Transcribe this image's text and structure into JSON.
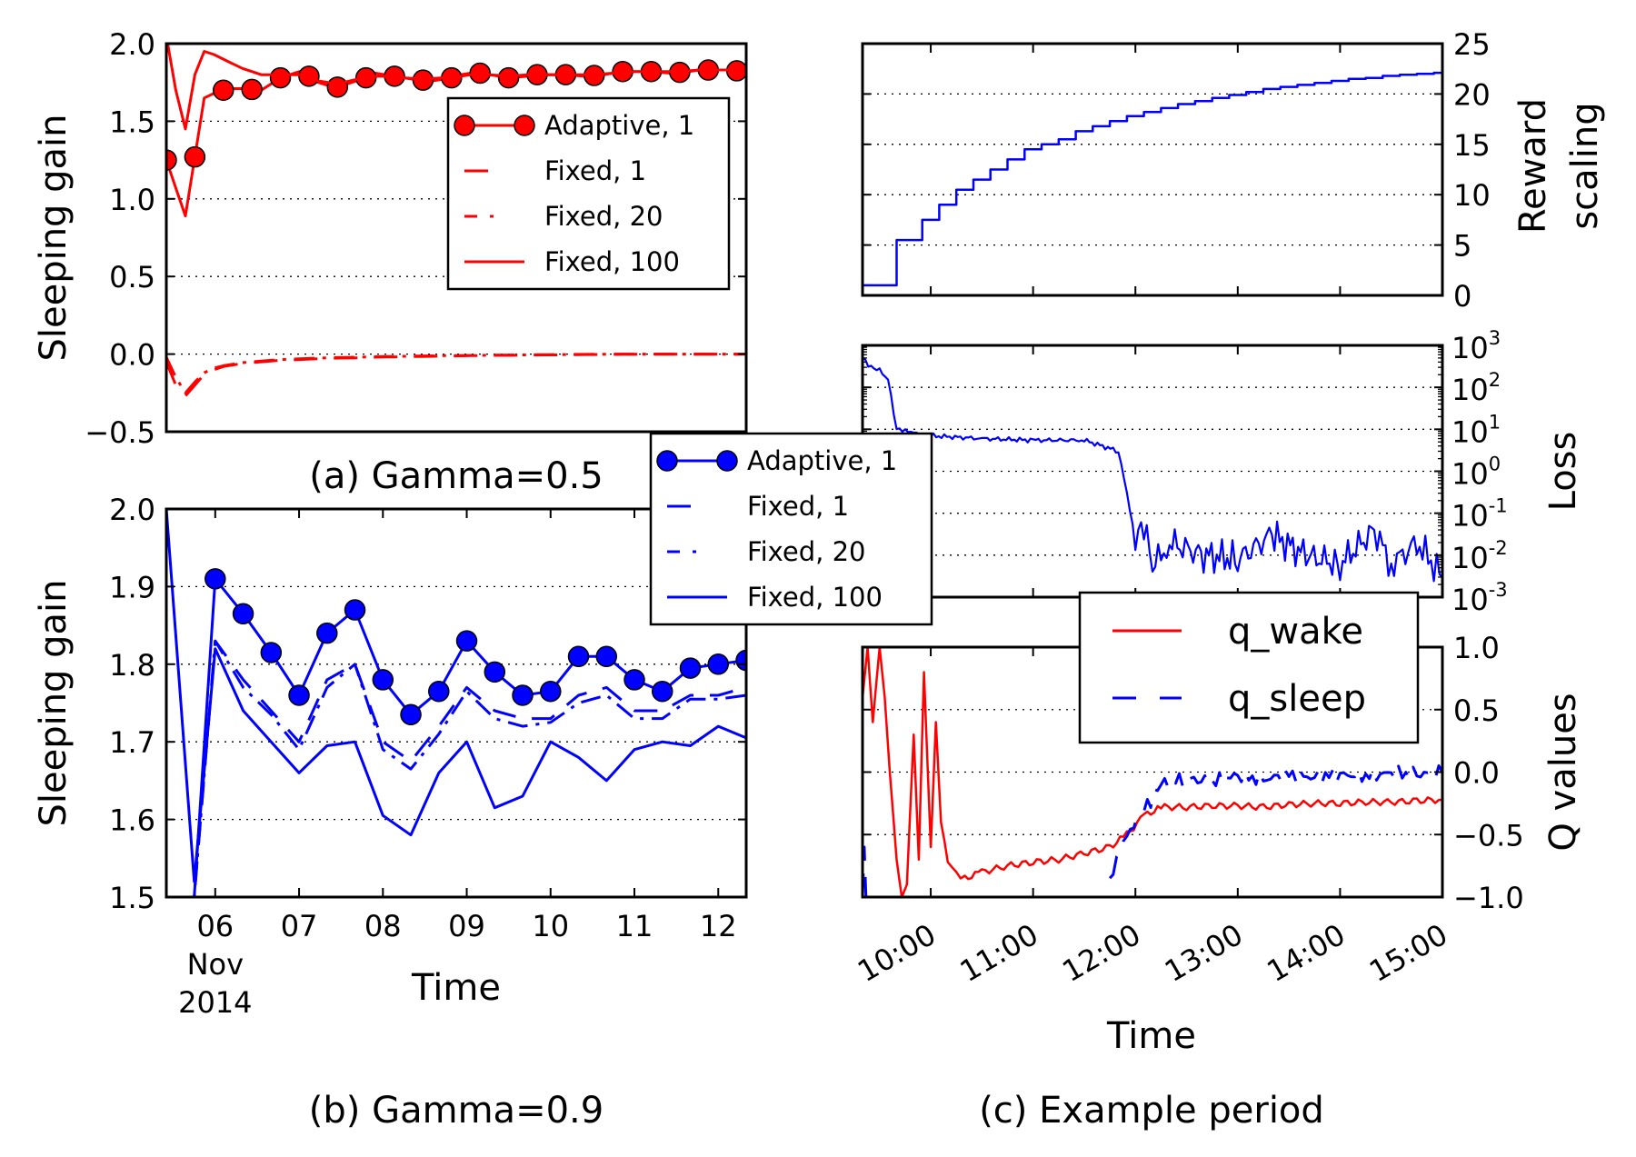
{
  "chart_data": [
    {
      "id": "a",
      "type": "line",
      "caption": "(a) Gamma=0.5",
      "ylabel": "Sleeping gain",
      "ylim": [
        -0.5,
        2.0
      ],
      "yticks": [
        "−0.5",
        "0.0",
        "0.5",
        "1.0",
        "1.5",
        "2.0"
      ],
      "grid": "y dotted",
      "legend_position": "upper-right",
      "colors": {
        "series": "#ff0000"
      },
      "x": [
        0,
        0.33,
        0.67,
        1.0,
        1.33,
        1.67,
        2.0,
        2.33,
        2.67,
        3.0,
        3.33,
        3.67,
        4.0,
        4.33,
        4.67,
        5.0,
        5.33,
        5.67,
        6.0,
        6.33,
        6.67,
        7.0,
        7.33,
        7.67,
        8.0,
        8.33,
        8.67,
        9.0,
        9.33,
        9.67,
        10.0,
        10.33,
        10.67,
        11.0,
        11.33,
        11.67,
        12.0,
        12.33,
        12.67,
        13.0,
        13.33,
        13.67,
        14.0,
        14.33,
        14.67,
        15.0,
        15.33,
        15.67,
        16.0,
        16.33,
        16.67,
        17.0,
        17.33,
        17.67,
        18.0,
        18.33,
        18.67,
        19.0,
        19.33,
        19.67,
        20.0,
        20.33
      ],
      "series": [
        {
          "name": "Adaptive, 1",
          "style": "solid-marker",
          "values": [
            1.25,
            1.07,
            0.89,
            1.27,
            1.65,
            1.68,
            1.7,
            1.71,
            1.71,
            1.705,
            1.7,
            1.74,
            1.78,
            1.8,
            1.82,
            1.79,
            1.75,
            1.73,
            1.72,
            1.74,
            1.76,
            1.78,
            1.81,
            1.8,
            1.79,
            1.78,
            1.77,
            1.765,
            1.76,
            1.77,
            1.78,
            1.8,
            1.81,
            1.81,
            1.8,
            1.79,
            1.78,
            1.785,
            1.79,
            1.8,
            1.8,
            1.8,
            1.8,
            1.795,
            1.79,
            1.795,
            1.8,
            1.81,
            1.82,
            1.82,
            1.82,
            1.82,
            1.815,
            1.81,
            1.815,
            1.82,
            1.83,
            1.83,
            1.83,
            1.83,
            1.825,
            1.82
          ]
        },
        {
          "name": "Fixed, 1",
          "style": "dashed",
          "values": [
            -0.05,
            -0.2,
            -0.27,
            -0.2,
            -0.13,
            -0.1,
            -0.08,
            -0.07,
            -0.06,
            -0.055,
            -0.05,
            -0.045,
            -0.04,
            -0.038,
            -0.035,
            -0.032,
            -0.03,
            -0.028,
            -0.026,
            -0.025,
            -0.024,
            -0.022,
            -0.02,
            -0.019,
            -0.018,
            -0.017,
            -0.016,
            -0.015,
            -0.014,
            -0.013,
            -0.012,
            -0.011,
            -0.01,
            -0.01,
            -0.009,
            -0.008,
            -0.008,
            -0.007,
            -0.006,
            -0.006,
            -0.005,
            -0.005,
            -0.004,
            -0.004,
            -0.003,
            -0.003,
            -0.002,
            -0.002,
            -0.001,
            -0.001,
            0.0,
            0.0,
            0.0,
            0.0,
            0.0,
            0.0,
            0.0,
            0.0,
            0.0,
            0.0,
            0.0,
            0.0
          ]
        },
        {
          "name": "Fixed, 20",
          "style": "dashdot",
          "values": [
            -0.02,
            -0.15,
            -0.25,
            -0.18,
            -0.12,
            -0.09,
            -0.075,
            -0.065,
            -0.055,
            -0.05,
            -0.045,
            -0.04,
            -0.036,
            -0.033,
            -0.03,
            -0.028,
            -0.026,
            -0.024,
            -0.022,
            -0.021,
            -0.02,
            -0.018,
            -0.017,
            -0.016,
            -0.015,
            -0.014,
            -0.013,
            -0.012,
            -0.011,
            -0.01,
            -0.01,
            -0.009,
            -0.008,
            -0.008,
            -0.007,
            -0.006,
            -0.006,
            -0.005,
            -0.005,
            -0.004,
            -0.004,
            -0.003,
            -0.003,
            -0.002,
            -0.002,
            -0.001,
            -0.001,
            0.0,
            0.0,
            0.0,
            0.0,
            0.0,
            0.0,
            0.0,
            0.0,
            0.0,
            0.0,
            0.0,
            0.0,
            0.0,
            0.0,
            0.0
          ]
        },
        {
          "name": "Fixed, 100",
          "style": "solid",
          "values": [
            2.05,
            1.7,
            1.45,
            1.8,
            1.95,
            1.93,
            1.9,
            1.87,
            1.84,
            1.82,
            1.8,
            1.8,
            1.8,
            1.8,
            1.8,
            1.78,
            1.76,
            1.75,
            1.74,
            1.755,
            1.77,
            1.78,
            1.79,
            1.79,
            1.785,
            1.78,
            1.775,
            1.775,
            1.775,
            1.78,
            1.785,
            1.79,
            1.8,
            1.8,
            1.8,
            1.795,
            1.79,
            1.795,
            1.8,
            1.8,
            1.8,
            1.8,
            1.8,
            1.8,
            1.8,
            1.8,
            1.805,
            1.81,
            1.815,
            1.82,
            1.82,
            1.82,
            1.82,
            1.82,
            1.82,
            1.825,
            1.83,
            1.83,
            1.83,
            1.83,
            1.83,
            1.83
          ]
        }
      ]
    },
    {
      "id": "b",
      "type": "line",
      "caption": "(b) Gamma=0.9",
      "xlabel": "Time",
      "ylabel": "Sleeping gain",
      "ylim": [
        1.5,
        2.0
      ],
      "yticks": [
        "1.5",
        "1.6",
        "1.7",
        "1.8",
        "1.9",
        "2.0"
      ],
      "xlim": [
        "2014-11-05 10:00",
        "2014-11-12 08:00"
      ],
      "xticks": [
        "06",
        "07",
        "08",
        "09",
        "10",
        "11",
        "12"
      ],
      "xtick_sublabel": [
        "Nov",
        "2014"
      ],
      "grid": "y dotted",
      "legend_position": "upper-right",
      "colors": {
        "series": "#0000ff"
      },
      "x": [
        "2014-11-05 10:00",
        "2014-11-05 18:00",
        "2014-11-06 00:00",
        "2014-11-06 08:00",
        "2014-11-06 16:00",
        "2014-11-07 00:00",
        "2014-11-07 08:00",
        "2014-11-07 16:00",
        "2014-11-08 00:00",
        "2014-11-08 08:00",
        "2014-11-08 16:00",
        "2014-11-09 00:00",
        "2014-11-09 08:00",
        "2014-11-09 16:00",
        "2014-11-10 00:00",
        "2014-11-10 08:00",
        "2014-11-10 16:00",
        "2014-11-11 00:00",
        "2014-11-11 08:00",
        "2014-11-11 16:00",
        "2014-11-12 00:00",
        "2014-11-12 08:00"
      ],
      "series": [
        {
          "name": "Adaptive, 1",
          "style": "solid-marker",
          "values": [
            1.5,
            1.5,
            1.91,
            1.865,
            1.815,
            1.76,
            1.84,
            1.87,
            1.78,
            1.735,
            1.765,
            1.83,
            1.79,
            1.76,
            1.765,
            1.81,
            1.81,
            1.78,
            1.765,
            1.795,
            1.8,
            1.805
          ]
        },
        {
          "name": "Fixed, 1",
          "style": "dashed",
          "values": [
            1.5,
            1.5,
            1.83,
            1.78,
            1.74,
            1.7,
            1.78,
            1.8,
            1.7,
            1.675,
            1.72,
            1.77,
            1.74,
            1.73,
            1.73,
            1.76,
            1.77,
            1.74,
            1.74,
            1.76,
            1.76,
            1.77
          ]
        },
        {
          "name": "Fixed, 20",
          "style": "dashdot",
          "values": [
            1.5,
            1.5,
            1.83,
            1.77,
            1.735,
            1.69,
            1.77,
            1.8,
            1.69,
            1.665,
            1.71,
            1.765,
            1.73,
            1.72,
            1.725,
            1.75,
            1.76,
            1.73,
            1.73,
            1.755,
            1.755,
            1.76
          ]
        },
        {
          "name": "Fixed, 100",
          "style": "solid",
          "values": [
            2.0,
            1.52,
            1.82,
            1.74,
            1.7,
            1.66,
            1.695,
            1.7,
            1.605,
            1.58,
            1.66,
            1.7,
            1.615,
            1.63,
            1.7,
            1.68,
            1.65,
            1.69,
            1.7,
            1.695,
            1.72,
            1.705
          ]
        }
      ]
    },
    {
      "id": "c",
      "type": "line",
      "caption": "(c) Example period",
      "xlabel": "Time",
      "xlim": [
        "09:20",
        "15:00"
      ],
      "xticks": [
        "10:00",
        "11:00",
        "12:00",
        "13:00",
        "14:00",
        "15:00"
      ],
      "panels": [
        {
          "id": "c1",
          "ylabel": [
            "Reward",
            "scaling"
          ],
          "ylim": [
            0,
            25
          ],
          "yticks": [
            "0",
            "5",
            "10",
            "15",
            "20",
            "25"
          ],
          "grid": "y dotted",
          "colors": {
            "line": "#0000ff"
          },
          "x": [
            "09:20",
            "09:35",
            "09:40",
            "09:45",
            "09:55",
            "10:05",
            "10:15",
            "10:25",
            "10:35",
            "10:45",
            "10:55",
            "11:05",
            "11:15",
            "11:25",
            "11:35",
            "11:45",
            "11:55",
            "12:05",
            "12:15",
            "12:25",
            "12:35",
            "12:45",
            "12:55",
            "13:05",
            "13:15",
            "13:25",
            "13:35",
            "13:45",
            "13:55",
            "14:05",
            "14:15",
            "14:25",
            "14:35",
            "14:45",
            "14:55",
            "15:00"
          ],
          "values": [
            1.0,
            1.0,
            5.5,
            5.5,
            7.5,
            9.0,
            10.5,
            11.5,
            12.5,
            13.5,
            14.5,
            15.0,
            15.5,
            16.3,
            16.8,
            17.3,
            17.8,
            18.2,
            18.6,
            19.0,
            19.3,
            19.6,
            19.9,
            20.2,
            20.5,
            20.7,
            20.9,
            21.1,
            21.3,
            21.5,
            21.6,
            21.8,
            21.9,
            22.0,
            22.1,
            22.1
          ]
        },
        {
          "id": "c2",
          "ylabel": "Loss",
          "yscale": "log",
          "ylim": [
            0.001,
            1000
          ],
          "yticks": [
            "10^-3",
            "10^-2",
            "10^-1",
            "10^0",
            "10^1",
            "10^2",
            "10^3"
          ],
          "grid": "y dotted",
          "colors": {
            "line": "#0000ff"
          },
          "x": [
            "09:20",
            "09:25",
            "09:30",
            "09:35",
            "09:40",
            "09:45",
            "09:50",
            "10:00",
            "10:30",
            "11:00",
            "11:30",
            "11:50",
            "11:55",
            "12:00",
            "12:05",
            "12:10",
            "12:20",
            "12:40",
            "13:00",
            "13:20",
            "13:40",
            "14:00",
            "14:20",
            "14:30",
            "14:45",
            "15:00"
          ],
          "values": [
            500,
            300,
            250,
            150,
            10,
            9,
            8,
            7,
            6,
            5.5,
            5.5,
            3,
            0.3,
            0.02,
            0.06,
            0.005,
            0.02,
            0.01,
            0.008,
            0.03,
            0.01,
            0.006,
            0.04,
            0.006,
            0.02,
            0.003
          ]
        },
        {
          "id": "c3",
          "ylabel": "Q values",
          "ylim": [
            -1.0,
            1.0
          ],
          "yticks": [
            "−1.0",
            "−0.5",
            "0.0",
            "0.5",
            "1.0"
          ],
          "grid": "y dotted",
          "legend_position": "upper-right",
          "series": [
            {
              "name": "q_wake",
              "style": "solid",
              "color": "#ff0000",
              "x": [
                "09:20",
                "09:23",
                "09:26",
                "09:30",
                "09:33",
                "09:36",
                "09:40",
                "09:43",
                "09:46",
                "09:50",
                "09:53",
                "09:56",
                "10:00",
                "10:03",
                "10:06",
                "10:10",
                "10:15",
                "10:20",
                "10:30",
                "10:45",
                "11:00",
                "11:15",
                "11:30",
                "11:45",
                "11:55",
                "12:05",
                "12:15",
                "12:30",
                "12:45",
                "13:00",
                "13:15",
                "13:30",
                "13:45",
                "14:00",
                "14:15",
                "14:30",
                "14:45",
                "15:00"
              ],
              "values": [
                0.6,
                1.0,
                0.4,
                1.0,
                0.6,
                0.0,
                -0.7,
                -1.0,
                -0.9,
                0.3,
                -0.7,
                0.8,
                -0.6,
                0.4,
                -0.4,
                -0.7,
                -0.8,
                -0.85,
                -0.8,
                -0.75,
                -0.72,
                -0.7,
                -0.65,
                -0.6,
                -0.5,
                -0.35,
                -0.28,
                -0.28,
                -0.27,
                -0.27,
                -0.28,
                -0.26,
                -0.25,
                -0.25,
                -0.24,
                -0.24,
                -0.23,
                -0.22
              ]
            },
            {
              "name": "q_sleep",
              "style": "dashed",
              "color": "#0000ff",
              "x": [
                "09:20",
                "09:21",
                "09:22",
                "11:45",
                "11:55",
                "12:05",
                "12:15",
                "12:30",
                "12:45",
                "13:00",
                "13:15",
                "13:30",
                "13:45",
                "14:00",
                "14:15",
                "14:30",
                "14:45",
                "15:00"
              ],
              "values": [
                -1.0,
                -0.6,
                -1.0,
                -0.85,
                -0.5,
                -0.3,
                -0.1,
                -0.05,
                -0.08,
                -0.03,
                -0.06,
                -0.02,
                -0.04,
                -0.02,
                -0.03,
                -0.01,
                -0.02,
                0.0
              ]
            }
          ]
        }
      ]
    }
  ]
}
